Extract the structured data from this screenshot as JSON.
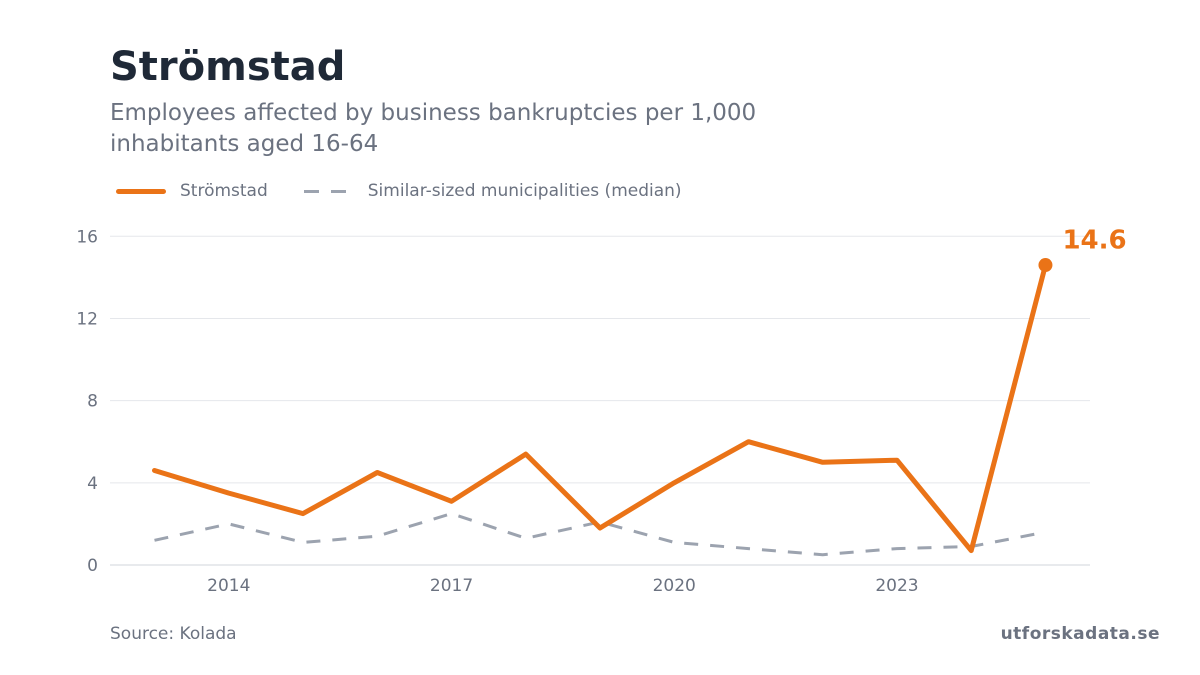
{
  "title": "Strömstad",
  "subtitle": "Employees affected by business bankruptcies per 1,000 inhabitants aged 16-64",
  "source": "Source: Kolada",
  "brand": "utforskadata.se",
  "colors": {
    "primary": "#ea7317",
    "median": "#9ca3af",
    "grid": "#e5e7eb",
    "text": "#6b7280",
    "title": "#1f2937"
  },
  "chart_data": {
    "type": "line",
    "x": [
      2013,
      2014,
      2015,
      2016,
      2017,
      2018,
      2019,
      2020,
      2021,
      2022,
      2023,
      2024,
      2025
    ],
    "x_ticks": [
      "2014",
      "2017",
      "2020",
      "2023"
    ],
    "y_ticks": [
      "0",
      "4",
      "8",
      "12",
      "16"
    ],
    "ylim": [
      0,
      16.5
    ],
    "grid": "horizontal",
    "legend_position": "top-left",
    "series": [
      {
        "name": "Strömstad",
        "style": "solid",
        "values": [
          4.6,
          3.5,
          2.5,
          4.5,
          3.1,
          5.4,
          1.8,
          4.0,
          6.0,
          5.0,
          5.1,
          0.7,
          14.6
        ]
      },
      {
        "name": "Similar-sized municipalities (median)",
        "style": "dashed",
        "values": [
          1.2,
          2.0,
          1.1,
          1.4,
          2.5,
          1.3,
          2.1,
          1.1,
          0.8,
          0.5,
          0.8,
          0.9,
          1.6
        ]
      }
    ],
    "last_value_label": "14.6"
  }
}
